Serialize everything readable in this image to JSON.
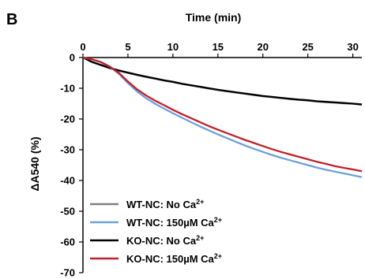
{
  "panel_label": "B",
  "chart_data": {
    "type": "line",
    "title": "Time (min)",
    "xlabel": "Time (min)",
    "ylabel": "ΔA540 (%)",
    "xlim": [
      0,
      31
    ],
    "ylim": [
      -70,
      0
    ],
    "xticks": [
      0,
      5,
      10,
      15,
      20,
      25,
      30
    ],
    "yticks": [
      0,
      -10,
      -20,
      -30,
      -40,
      -50,
      -60,
      -70
    ],
    "x_axis_position": "top",
    "grid": false,
    "legend_position": "bottom-left",
    "x": [
      0,
      1,
      2,
      3,
      4,
      5,
      6,
      7,
      8,
      9,
      10,
      11,
      12,
      13,
      14,
      15,
      16,
      17,
      18,
      19,
      20,
      21,
      22,
      23,
      24,
      25,
      26,
      27,
      28,
      29,
      30,
      31
    ],
    "series": [
      {
        "name": "WT-NC: No Ca²⁺",
        "label_text": "WT-NC: No Ca",
        "label_sup": "2+",
        "color": "#808080",
        "values": [
          0,
          -1.5,
          -2.5,
          -3.5,
          -4.3,
          -5.0,
          -5.7,
          -6.3,
          -6.9,
          -7.5,
          -8.0,
          -8.6,
          -9.1,
          -9.6,
          -10.1,
          -10.6,
          -11.0,
          -11.4,
          -11.8,
          -12.2,
          -12.6,
          -12.9,
          -13.2,
          -13.5,
          -13.8,
          -14.0,
          -14.3,
          -14.5,
          -14.7,
          -14.9,
          -15.0,
          -15.2
        ]
      },
      {
        "name": "WT-NC: 150µM Ca²⁺",
        "label_text": "WT-NC: 150µM Ca",
        "label_sup": "2+",
        "color": "#6fa0d8",
        "values": [
          0,
          -0.6,
          -1.5,
          -3.0,
          -5.3,
          -8.3,
          -11.0,
          -13.2,
          -15.0,
          -16.6,
          -18.1,
          -19.6,
          -21.0,
          -22.4,
          -23.7,
          -25.0,
          -26.2,
          -27.4,
          -28.6,
          -29.7,
          -30.7,
          -31.7,
          -32.6,
          -33.4,
          -34.2,
          -35.0,
          -35.8,
          -36.5,
          -37.1,
          -37.7,
          -38.3,
          -38.9
        ]
      },
      {
        "name": "KO-NC: No Ca²⁺",
        "label_text": "KO-NC: No Ca",
        "label_sup": "2+",
        "color": "#000000",
        "values": [
          0,
          -1.4,
          -2.4,
          -3.4,
          -4.2,
          -4.9,
          -5.6,
          -6.2,
          -6.8,
          -7.4,
          -7.9,
          -8.5,
          -9.0,
          -9.5,
          -10.0,
          -10.5,
          -10.9,
          -11.3,
          -11.7,
          -12.1,
          -12.5,
          -12.8,
          -13.1,
          -13.4,
          -13.7,
          -13.9,
          -14.2,
          -14.4,
          -14.6,
          -14.8,
          -15.0,
          -15.3
        ]
      },
      {
        "name": "KO-NC: 150µM Ca²⁺",
        "label_text": "KO-NC: 150µM Ca",
        "label_sup": "2+",
        "color": "#c0202a",
        "values": [
          0,
          -0.6,
          -1.5,
          -3.0,
          -5.0,
          -7.8,
          -10.3,
          -12.3,
          -14.0,
          -15.5,
          -17.0,
          -18.4,
          -19.7,
          -21.0,
          -22.3,
          -23.5,
          -24.6,
          -25.7,
          -26.8,
          -27.8,
          -28.8,
          -29.8,
          -30.7,
          -31.5,
          -32.3,
          -33.1,
          -33.9,
          -34.6,
          -35.3,
          -35.9,
          -36.4,
          -37.0
        ]
      }
    ]
  }
}
